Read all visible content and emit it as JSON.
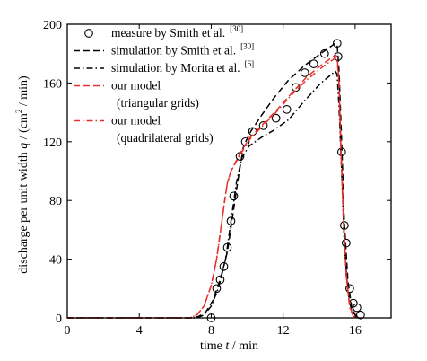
{
  "chart_data": {
    "type": "line",
    "xlabel": {
      "pre": "time ",
      "var": "t",
      "post": " / min"
    },
    "ylabel": {
      "pre": "discharge per unit width ",
      "var": "q",
      "post": " / (cm",
      "sup": "2",
      "post2": " / min)"
    },
    "xlim": [
      0,
      18
    ],
    "ylim": [
      0,
      200
    ],
    "xticks": [
      0,
      4,
      8,
      12,
      16
    ],
    "yticks": [
      0,
      40,
      80,
      120,
      160,
      200
    ],
    "grid": false,
    "legend_position": "top-right",
    "legend": [
      {
        "text": "measure by Smith et al.",
        "ref": "[30]"
      },
      {
        "text": "simulation by Smith et al.",
        "ref": "[30]"
      },
      {
        "text": "simulation by Morita et al.",
        "ref": "[6]"
      },
      {
        "text": "our model",
        "ref": ""
      },
      {
        "text": "(triangular grids)",
        "ref": ""
      },
      {
        "text": "our model",
        "ref": ""
      },
      {
        "text": "(quadrilateral grids)",
        "ref": ""
      }
    ],
    "series": [
      {
        "name": "measure by Smith et al. [30]",
        "style": "circle-marker",
        "color": "#000000",
        "points": [
          [
            8.0,
            0
          ],
          [
            8.3,
            20
          ],
          [
            8.5,
            26
          ],
          [
            8.7,
            35
          ],
          [
            8.9,
            48
          ],
          [
            9.1,
            66
          ],
          [
            9.25,
            83
          ],
          [
            9.6,
            110
          ],
          [
            9.9,
            120
          ],
          [
            10.3,
            127
          ],
          [
            10.9,
            131
          ],
          [
            11.6,
            136
          ],
          [
            12.2,
            142
          ],
          [
            12.7,
            157
          ],
          [
            13.2,
            167
          ],
          [
            13.7,
            173
          ],
          [
            14.3,
            180
          ],
          [
            15.0,
            187
          ],
          [
            15.05,
            178
          ],
          [
            15.25,
            113
          ],
          [
            15.4,
            63
          ],
          [
            15.5,
            51
          ],
          [
            15.7,
            20
          ],
          [
            15.9,
            10
          ],
          [
            16.1,
            7
          ],
          [
            16.3,
            2
          ]
        ]
      },
      {
        "name": "simulation by Smith et al. [30]",
        "style": "dashed",
        "color": "#000000",
        "points": [
          [
            0,
            0
          ],
          [
            7.0,
            0
          ],
          [
            7.3,
            1
          ],
          [
            7.7,
            4
          ],
          [
            8.1,
            12
          ],
          [
            8.5,
            26
          ],
          [
            8.9,
            45
          ],
          [
            9.2,
            70
          ],
          [
            9.5,
            95
          ],
          [
            9.8,
            117
          ],
          [
            10.2,
            127
          ],
          [
            10.8,
            138
          ],
          [
            11.5,
            150
          ],
          [
            12.3,
            162
          ],
          [
            13.2,
            172
          ],
          [
            14.2,
            181
          ],
          [
            14.9,
            187
          ],
          [
            15.0,
            186
          ],
          [
            15.1,
            170
          ],
          [
            15.25,
            120
          ],
          [
            15.4,
            65
          ],
          [
            15.6,
            25
          ],
          [
            15.8,
            8
          ],
          [
            16.0,
            2
          ],
          [
            16.2,
            0
          ]
        ]
      },
      {
        "name": "simulation by Morita et al. [6]",
        "style": "dashdot",
        "color": "#000000",
        "points": [
          [
            0,
            0
          ],
          [
            7.2,
            0
          ],
          [
            7.6,
            2
          ],
          [
            8.0,
            8
          ],
          [
            8.4,
            20
          ],
          [
            8.8,
            40
          ],
          [
            9.1,
            66
          ],
          [
            9.4,
            92
          ],
          [
            9.7,
            109
          ],
          [
            10.1,
            117
          ],
          [
            10.8,
            123
          ],
          [
            11.5,
            128
          ],
          [
            12.3,
            135
          ],
          [
            13.2,
            148
          ],
          [
            14.1,
            160
          ],
          [
            14.9,
            168
          ],
          [
            15.0,
            166
          ],
          [
            15.1,
            145
          ],
          [
            15.25,
            100
          ],
          [
            15.4,
            50
          ],
          [
            15.6,
            18
          ],
          [
            15.8,
            5
          ],
          [
            16.0,
            1
          ],
          [
            16.2,
            0
          ]
        ]
      },
      {
        "name": "our model (triangular grids)",
        "style": "dashed",
        "color": "#e8302b",
        "points": [
          [
            0,
            0
          ],
          [
            6.8,
            0
          ],
          [
            7.2,
            2
          ],
          [
            7.6,
            8
          ],
          [
            8.0,
            22
          ],
          [
            8.3,
            40
          ],
          [
            8.55,
            62
          ],
          [
            8.75,
            80
          ],
          [
            8.9,
            92
          ],
          [
            9.1,
            100
          ],
          [
            9.6,
            112
          ],
          [
            10.1,
            122
          ],
          [
            10.8,
            131
          ],
          [
            11.6,
            141
          ],
          [
            12.4,
            152
          ],
          [
            13.3,
            164
          ],
          [
            14.2,
            173
          ],
          [
            14.9,
            179
          ],
          [
            15.0,
            178
          ],
          [
            15.1,
            162
          ],
          [
            15.2,
            120
          ],
          [
            15.35,
            70
          ],
          [
            15.5,
            30
          ],
          [
            15.7,
            8
          ],
          [
            15.9,
            1
          ],
          [
            16.1,
            0
          ]
        ]
      },
      {
        "name": "our model (quadrilateral grids)",
        "style": "dashdot",
        "color": "#e8302b",
        "points": [
          [
            0,
            0
          ],
          [
            6.8,
            0
          ],
          [
            7.2,
            2
          ],
          [
            7.6,
            8
          ],
          [
            8.0,
            22
          ],
          [
            8.3,
            40
          ],
          [
            8.55,
            62
          ],
          [
            8.75,
            80
          ],
          [
            8.9,
            92
          ],
          [
            9.1,
            100
          ],
          [
            9.6,
            111
          ],
          [
            10.1,
            121
          ],
          [
            10.8,
            130
          ],
          [
            11.6,
            140
          ],
          [
            12.4,
            151
          ],
          [
            13.3,
            162
          ],
          [
            14.2,
            171
          ],
          [
            14.9,
            177
          ],
          [
            15.0,
            176
          ],
          [
            15.1,
            160
          ],
          [
            15.2,
            118
          ],
          [
            15.35,
            68
          ],
          [
            15.5,
            29
          ],
          [
            15.7,
            7
          ],
          [
            15.9,
            1
          ],
          [
            16.1,
            0
          ]
        ]
      }
    ]
  }
}
